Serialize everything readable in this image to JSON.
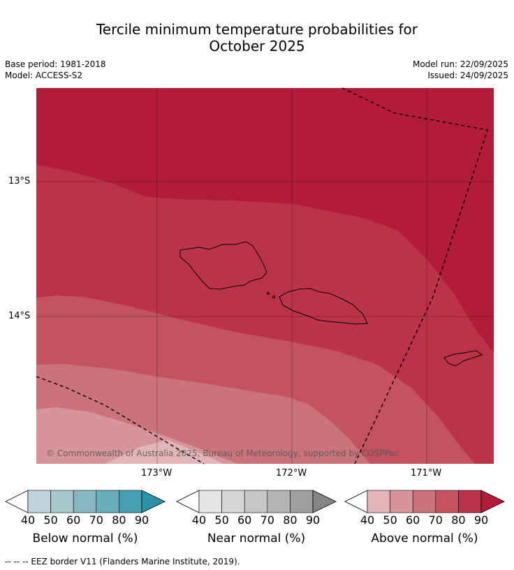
{
  "title_line1": "Tercile minimum temperature probabilities for",
  "title_line2": "October 2025",
  "meta": {
    "base_period": "Base period: 1981-2018",
    "model": "Model: ACCESS-S2",
    "model_run": "Model run: 22/09/2025",
    "issued": "Issued: 24/09/2025"
  },
  "map": {
    "copyright": "© Commonwealth of Australia 2025, Bureau of Meteorology, supported by COSPPac",
    "lat_labels": [
      "13°S",
      "14°S"
    ],
    "lon_labels": [
      "173°W",
      "172°W",
      "171°W"
    ]
  },
  "legends": [
    {
      "title": "Below normal (%)",
      "ticks": [
        "40",
        "50",
        "60",
        "70",
        "80",
        "90"
      ],
      "colors": [
        "#bfd4da",
        "#a6c7cc",
        "#88b7c2",
        "#6badbb",
        "#47a0b1",
        "#2a92a8"
      ]
    },
    {
      "title": "Near normal (%)",
      "ticks": [
        "40",
        "50",
        "60",
        "70",
        "80",
        "90"
      ],
      "colors": [
        "#e6e6e6",
        "#d6d6d6",
        "#c6c6c6",
        "#b3b3b3",
        "#9e9e9e",
        "#858585"
      ]
    },
    {
      "title": "Above normal (%)",
      "ticks": [
        "40",
        "50",
        "60",
        "70",
        "80",
        "90"
      ],
      "colors": [
        "#e1b5ba",
        "#d5959b",
        "#cb737b",
        "#c2535f",
        "#bb3349",
        "#b01c39"
      ]
    }
  ],
  "footnote": "--  --  -- EEZ border V11 (Flanders Marine Institute, 2019)."
}
